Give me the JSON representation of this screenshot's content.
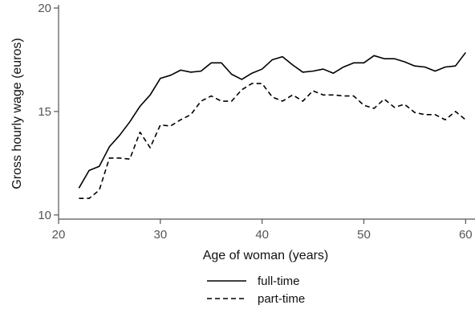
{
  "chart_data": {
    "type": "line",
    "xlabel": "Age of woman (years)",
    "ylabel": "Gross hourly wage (euros)",
    "xlim": [
      20,
      61
    ],
    "ylim": [
      9.8,
      20
    ],
    "x_ticks": [
      20,
      30,
      40,
      50,
      60
    ],
    "y_ticks": [
      10,
      15,
      20
    ],
    "x_tick_labels": [
      "20",
      "30",
      "40",
      "50",
      "60"
    ],
    "y_tick_labels": [
      "10",
      "15",
      "20"
    ],
    "legend_position": "bottom-center",
    "x": [
      22,
      23,
      24,
      25,
      26,
      27,
      28,
      29,
      30,
      31,
      32,
      33,
      34,
      35,
      36,
      37,
      38,
      39,
      40,
      41,
      42,
      43,
      44,
      45,
      46,
      47,
      48,
      49,
      50,
      51,
      52,
      53,
      54,
      55,
      56,
      57,
      58,
      59,
      60
    ],
    "series": [
      {
        "name": "full-time",
        "style": "solid",
        "color": "#000000",
        "values": [
          11.3,
          12.15,
          12.35,
          13.3,
          13.85,
          14.5,
          15.25,
          15.8,
          16.6,
          16.75,
          17.0,
          16.9,
          16.95,
          17.35,
          17.35,
          16.8,
          16.55,
          16.85,
          17.05,
          17.5,
          17.65,
          17.25,
          16.9,
          16.95,
          17.05,
          16.85,
          17.15,
          17.35,
          17.35,
          17.7,
          17.55,
          17.55,
          17.4,
          17.2,
          17.15,
          16.95,
          17.15,
          17.2,
          17.85
        ]
      },
      {
        "name": "part-time",
        "style": "dashed",
        "color": "#000000",
        "values": [
          10.8,
          10.8,
          11.2,
          12.75,
          12.75,
          12.7,
          14.0,
          13.25,
          14.35,
          14.3,
          14.6,
          14.85,
          15.5,
          15.75,
          15.5,
          15.5,
          16.05,
          16.35,
          16.35,
          15.7,
          15.5,
          15.8,
          15.5,
          16.0,
          15.8,
          15.8,
          15.75,
          15.75,
          15.3,
          15.15,
          15.6,
          15.2,
          15.35,
          14.95,
          14.85,
          14.85,
          14.6,
          15.0,
          14.6
        ]
      }
    ]
  }
}
